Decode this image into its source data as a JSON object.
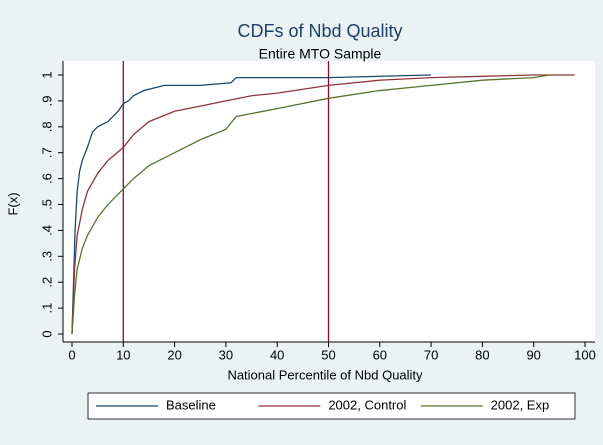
{
  "chart_data": {
    "type": "line",
    "title": "CDFs of Nbd Quality",
    "subtitle": "Entire MTO Sample",
    "x_label": "National Percentile of Nbd Quality",
    "y_label": "F(x)",
    "xlim": [
      0,
      100
    ],
    "ylim": [
      0,
      1
    ],
    "xticks": [
      0,
      10,
      20,
      30,
      40,
      50,
      60,
      70,
      80,
      90,
      100
    ],
    "yticks": [
      0,
      {
        "value": 0.1,
        "label": ".1"
      },
      {
        "value": 0.2,
        "label": ".2"
      },
      {
        "value": 0.3,
        "label": ".3"
      },
      {
        "value": 0.4,
        "label": ".4"
      },
      {
        "value": 0.5,
        "label": ".5"
      },
      {
        "value": 0.6,
        "label": ".6"
      },
      {
        "value": 0.7,
        "label": ".7"
      },
      {
        "value": 0.8,
        "label": ".8"
      },
      {
        "value": 0.9,
        "label": ".9"
      },
      1
    ],
    "xlines": [
      10,
      50
    ],
    "xline_color": "#990033",
    "legend": "bottom",
    "series": [
      {
        "name": "Baseline",
        "color": "#1a476f",
        "x": [
          0,
          0.3,
          0.6,
          1,
          1.5,
          2,
          3,
          4,
          5,
          7,
          8,
          9,
          10,
          11,
          12,
          14,
          16,
          18,
          25,
          31,
          32,
          40,
          50,
          70
        ],
        "values": [
          0,
          0.2,
          0.4,
          0.55,
          0.63,
          0.67,
          0.72,
          0.78,
          0.8,
          0.82,
          0.84,
          0.86,
          0.89,
          0.9,
          0.92,
          0.94,
          0.95,
          0.96,
          0.96,
          0.97,
          0.99,
          0.99,
          0.99,
          1
        ]
      },
      {
        "name": "2002, Control",
        "color": "#90353b",
        "x": [
          0,
          0.5,
          1,
          2,
          3,
          5,
          7,
          10,
          12,
          15,
          20,
          25,
          30,
          35,
          40,
          50,
          60,
          70,
          80,
          90,
          98
        ],
        "values": [
          0,
          0.25,
          0.38,
          0.48,
          0.55,
          0.62,
          0.67,
          0.72,
          0.77,
          0.82,
          0.86,
          0.88,
          0.9,
          0.92,
          0.93,
          0.96,
          0.98,
          0.99,
          0.995,
          1,
          1
        ]
      },
      {
        "name": "2002, Exp",
        "color": "#55752f",
        "x": [
          0,
          0.5,
          1,
          2,
          3,
          5,
          7,
          10,
          12,
          15,
          20,
          25,
          30,
          32,
          40,
          50,
          60,
          70,
          80,
          90,
          93
        ],
        "values": [
          0,
          0.15,
          0.25,
          0.33,
          0.38,
          0.45,
          0.5,
          0.56,
          0.6,
          0.65,
          0.7,
          0.75,
          0.79,
          0.84,
          0.87,
          0.91,
          0.94,
          0.96,
          0.98,
          0.99,
          1
        ]
      }
    ]
  }
}
